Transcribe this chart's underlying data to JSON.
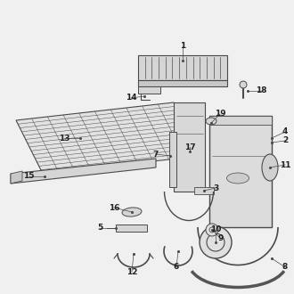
{
  "bg_color": "#f0f0f0",
  "line_color": "#4a4a4a",
  "text_color": "#222222",
  "fill_light": "#e8e8e8",
  "fill_mid": "#d5d5d5",
  "fill_dark": "#c8c8c8",
  "figsize": [
    3.3,
    3.3
  ],
  "dpi": 100
}
